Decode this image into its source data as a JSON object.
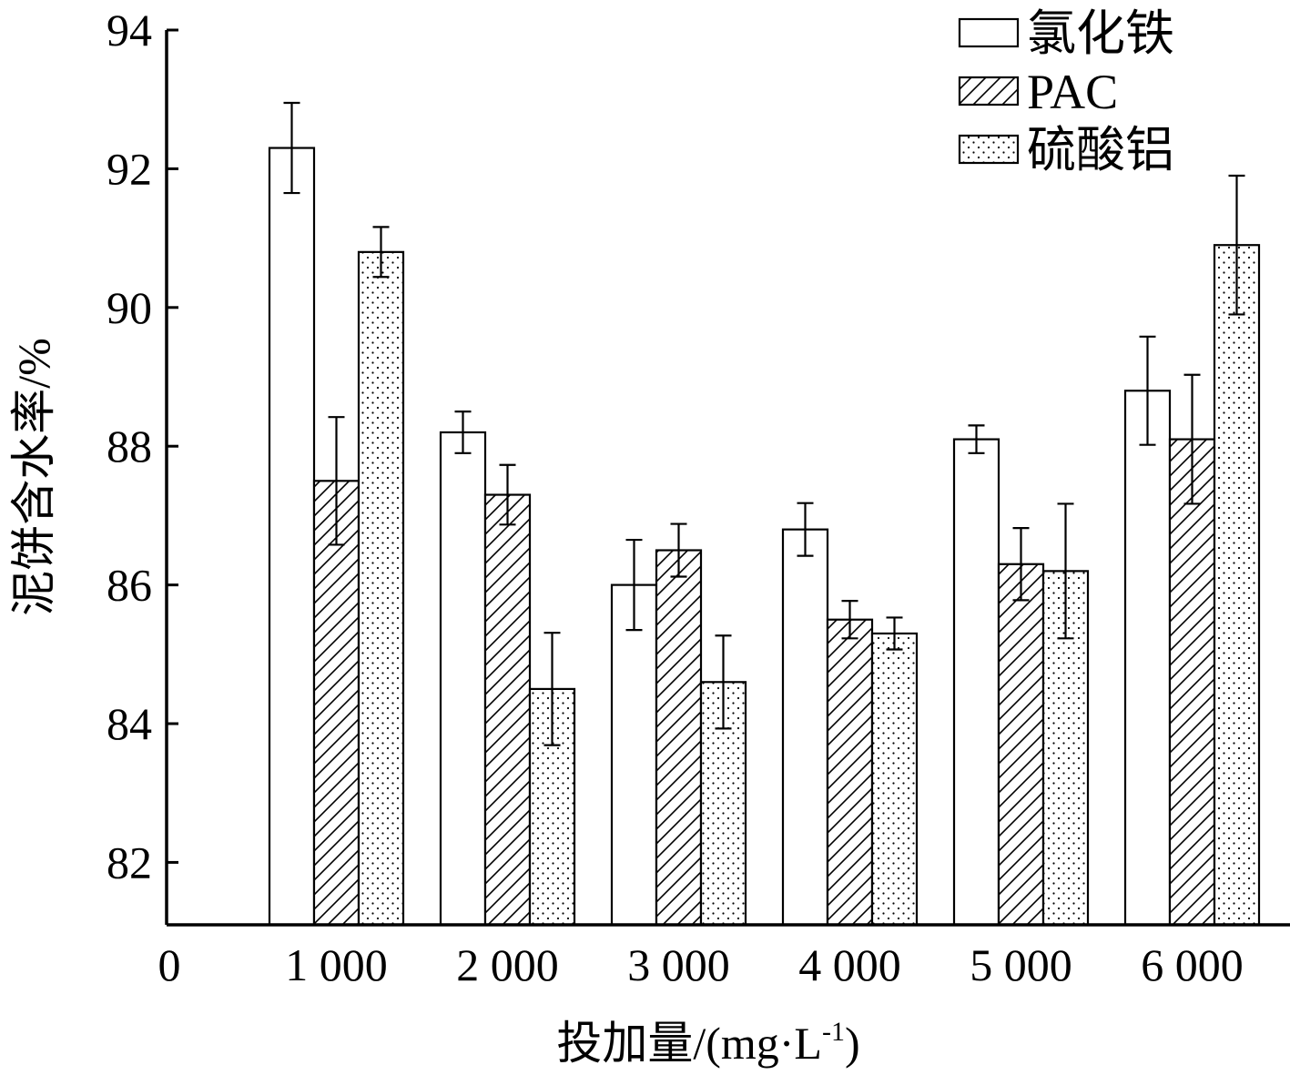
{
  "chart_data": {
    "type": "bar",
    "xlabel": "投加量/(mg·L-1)",
    "xlabel_main": "投加量/(mg·L",
    "xlabel_sup": "-1",
    "xlabel_close": ")",
    "ylabel": "泥饼含水率/%",
    "x_origin_label": "0",
    "categories": [
      "1 000",
      "2 000",
      "3 000",
      "4 000",
      "5 000",
      "6 000"
    ],
    "ylim": [
      81.1,
      94
    ],
    "yticks": [
      "82",
      "84",
      "86",
      "88",
      "90",
      "92",
      "94"
    ],
    "grid": false,
    "legend_position": "top-right",
    "series": [
      {
        "name": "氯化铁",
        "pattern": "blank",
        "values": [
          92.3,
          88.2,
          86.0,
          86.8,
          88.1,
          88.8
        ],
        "errors": [
          0.65,
          0.3,
          0.65,
          0.38,
          0.2,
          0.78
        ]
      },
      {
        "name": "PAC",
        "pattern": "hatch",
        "values": [
          87.5,
          87.3,
          86.5,
          85.5,
          86.3,
          88.1
        ],
        "errors": [
          0.92,
          0.43,
          0.38,
          0.27,
          0.52,
          0.93
        ]
      },
      {
        "name": "硫酸铝",
        "pattern": "dots",
        "values": [
          90.8,
          84.5,
          84.6,
          85.3,
          86.2,
          90.9
        ],
        "errors": [
          0.36,
          0.81,
          0.67,
          0.23,
          0.97,
          1.0
        ]
      }
    ]
  }
}
